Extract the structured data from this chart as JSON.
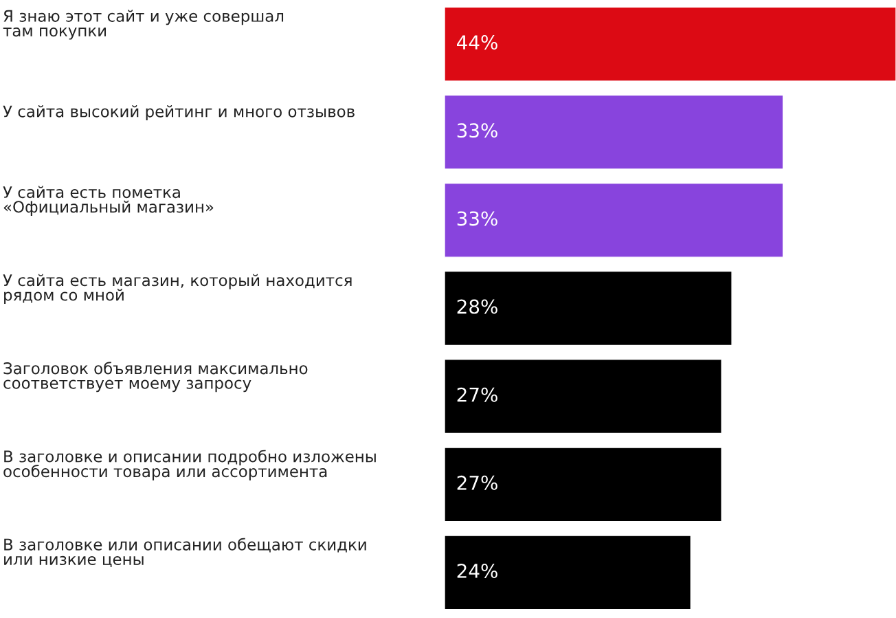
{
  "chart_data": {
    "type": "bar",
    "orientation": "horizontal",
    "categories": [
      "Я знаю этот сайт и уже совершал\nтам покупки",
      "У сайта высокий рейтинг и много отзывов",
      "У сайта есть пометка\n«Официальный магазин»",
      "У сайта есть магазин, который находится\nрядом со мной",
      "Заголовок объявления максимально\nсоответствует моему запросу",
      "В заголовке и описании подробно изложены\nособенности товара или ассортимента",
      "В заголовке или описании обещают скидки\nили низкие цены"
    ],
    "values": [
      44,
      33,
      33,
      28,
      27,
      27,
      24
    ],
    "colors": [
      "#dc0a14",
      "#8844dd",
      "#8844dd",
      "#000000",
      "#000000",
      "#000000",
      "#000000"
    ],
    "value_labels": [
      "44%",
      "33%",
      "33%",
      "28%",
      "27%",
      "27%",
      "24%"
    ],
    "legend": false
  }
}
